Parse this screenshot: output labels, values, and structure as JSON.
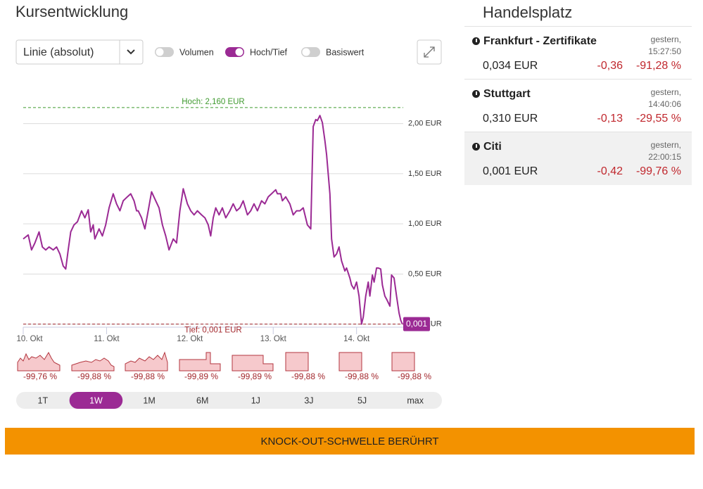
{
  "header": {
    "title": "Kursentwicklung",
    "select": "Linie (absolut)"
  },
  "toggles": [
    {
      "label": "Volumen",
      "on": false
    },
    {
      "label": "Hoch/Tief",
      "on": true
    },
    {
      "label": "Basiswert",
      "on": false
    }
  ],
  "chart_data": {
    "type": "line",
    "x": [
      0,
      0.06,
      0.1,
      0.14,
      0.19,
      0.23,
      0.27,
      0.31,
      0.36,
      0.4,
      0.44,
      0.48,
      0.51,
      0.54,
      0.57,
      0.61,
      0.65,
      0.7,
      0.74,
      0.78,
      0.81,
      0.84,
      0.86,
      0.91,
      0.95,
      0.99,
      1.03,
      1.08,
      1.12,
      1.16,
      1.2,
      1.25,
      1.29,
      1.33,
      1.36,
      1.38,
      1.42,
      1.46,
      1.5,
      1.54,
      1.59,
      1.63,
      1.67,
      1.71,
      1.75,
      1.8,
      1.84,
      1.88,
      1.92,
      1.97,
      2.01,
      2.05,
      2.09,
      2.14,
      2.18,
      2.22,
      2.25,
      2.28,
      2.31,
      2.35,
      2.39,
      2.43,
      2.48,
      2.52,
      2.56,
      2.6,
      2.64,
      2.69,
      2.73,
      2.77,
      2.81,
      2.86,
      2.9,
      2.94,
      2.98,
      3.03,
      3.05,
      3.09,
      3.11,
      3.15,
      3.2,
      3.24,
      3.28,
      3.32,
      3.36,
      3.41,
      3.45,
      3.48,
      3.51,
      3.53,
      3.56,
      3.59,
      3.62,
      3.64,
      3.68,
      3.7,
      3.73,
      3.76,
      3.79,
      3.82,
      3.86,
      3.88,
      3.92,
      3.94,
      3.97,
      4.0,
      4.03,
      4.06,
      4.08,
      4.11,
      4.14,
      4.16,
      4.19,
      4.21,
      4.24,
      4.26,
      4.29,
      4.31,
      4.34,
      4.36,
      4.4,
      4.42,
      4.45,
      4.48,
      4.51,
      4.53,
      4.55
    ],
    "series": [
      {
        "color": "#9b2a94",
        "values": [
          0.85,
          0.89,
          0.74,
          0.81,
          0.92,
          0.77,
          0.74,
          0.77,
          0.74,
          0.77,
          0.7,
          0.58,
          0.55,
          0.74,
          0.92,
          0.99,
          1.02,
          1.13,
          1.06,
          1.14,
          0.92,
          0.99,
          0.85,
          0.95,
          0.88,
          0.99,
          1.16,
          1.3,
          1.2,
          1.13,
          1.23,
          1.27,
          1.3,
          1.23,
          1.13,
          1.13,
          1.06,
          0.95,
          1.13,
          1.32,
          1.23,
          1.16,
          0.99,
          0.88,
          0.74,
          0.85,
          0.81,
          1.13,
          1.35,
          1.2,
          1.13,
          1.09,
          1.13,
          1.09,
          1.06,
          0.99,
          0.88,
          1.06,
          1.16,
          1.09,
          1.16,
          1.06,
          1.13,
          1.2,
          1.13,
          1.16,
          1.23,
          1.09,
          1.13,
          1.2,
          1.13,
          1.23,
          1.2,
          1.27,
          1.3,
          1.34,
          1.3,
          1.3,
          1.23,
          1.27,
          1.2,
          1.09,
          1.13,
          1.13,
          1.16,
          0.99,
          0.95,
          1.97,
          2.04,
          2.03,
          2.08,
          2.01,
          1.83,
          1.69,
          1.3,
          0.85,
          0.67,
          0.7,
          0.77,
          0.63,
          0.53,
          0.56,
          0.46,
          0.39,
          0.35,
          0.42,
          0.28,
          0.0,
          0.07,
          0.28,
          0.42,
          0.28,
          0.49,
          0.42,
          0.56,
          0.56,
          0.55,
          0.39,
          0.28,
          0.25,
          0.18,
          0.49,
          0.46,
          0.28,
          0.11,
          0.04,
          0.001
        ]
      }
    ],
    "xlim": [
      0,
      4.56
    ],
    "ylim": [
      -0.03,
      2.25
    ],
    "xticks": [
      {
        "value": 0,
        "label": "10. Okt"
      },
      {
        "value": 1,
        "label": "11. Okt"
      },
      {
        "value": 2,
        "label": "12. Okt"
      },
      {
        "value": 3,
        "label": "13. Okt"
      },
      {
        "value": 4,
        "label": "14. Okt"
      }
    ],
    "yticks": [
      {
        "value": 0,
        "label": "0,00 EUR"
      },
      {
        "value": 0.5,
        "label": "0,50 EUR"
      },
      {
        "value": 1,
        "label": "1,00 EUR"
      },
      {
        "value": 1.5,
        "label": "1,50 EUR"
      },
      {
        "value": 2,
        "label": "2,00 EUR"
      }
    ],
    "grid": true,
    "high": {
      "value": 2.16,
      "label": "Hoch: 2,160 EUR",
      "color": "#3f9a2f"
    },
    "low": {
      "value": 0.001,
      "label": "Tief: 0,001 EUR",
      "color": "#a3282d"
    },
    "last": {
      "value": 0.001,
      "label": "0,001"
    }
  },
  "mini_changes": [
    "-99,76 %",
    "-99,88 %",
    "-99,88 %",
    "-99,89 %",
    "-99,89 %",
    "-99,88 %",
    "-99,88 %",
    "-99,88 %"
  ],
  "ranges": {
    "items": [
      "1T",
      "1W",
      "1M",
      "6M",
      "1J",
      "3J",
      "5J",
      "max"
    ],
    "active": 1
  },
  "handelsplatz": {
    "title": "Handelsplatz",
    "selected": 2,
    "rows": [
      {
        "name": "Frankfurt - Zertifikate",
        "date": "gestern,",
        "time": "15:27:50",
        "price": "0,034 EUR",
        "change": "-0,36",
        "percent": "-91,28 %"
      },
      {
        "name": "Stuttgart",
        "date": "gestern,",
        "time": "14:40:06",
        "price": "0,310 EUR",
        "change": "-0,13",
        "percent": "-29,55 %"
      },
      {
        "name": "Citi",
        "date": "gestern,",
        "time": "22:00:15",
        "price": "0,001 EUR",
        "change": "-0,42",
        "percent": "-99,76 %"
      }
    ]
  },
  "banner": "KNOCK-OUT-SCHWELLE BERÜHRT"
}
